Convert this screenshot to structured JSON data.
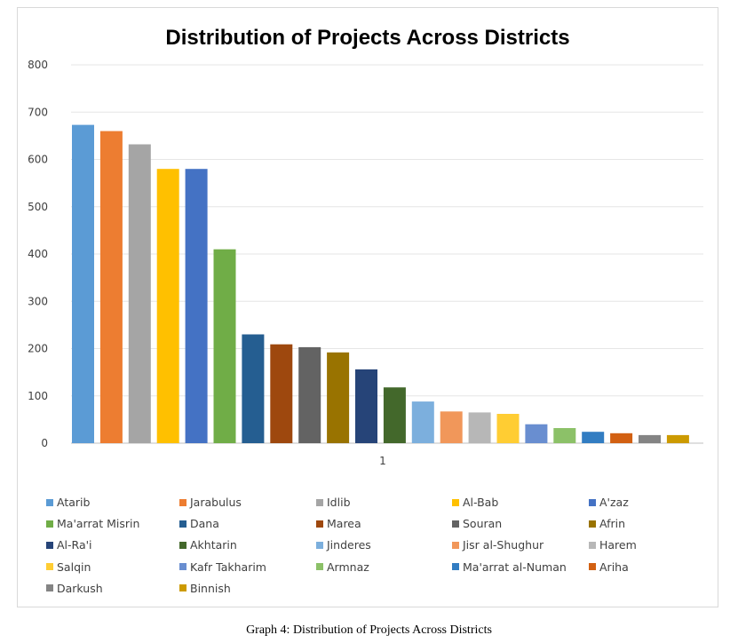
{
  "chart_data": {
    "type": "bar",
    "title": "Distribution of Projects Across Districts",
    "categories": [
      "1"
    ],
    "ylim": [
      0,
      800
    ],
    "yticks": [
      0,
      100,
      200,
      300,
      400,
      500,
      600,
      700,
      800
    ],
    "grid": true,
    "legend_position": "bottom",
    "series": [
      {
        "name": "Atarib",
        "value": 673,
        "color": "#5b9bd5"
      },
      {
        "name": "Jarabulus",
        "value": 660,
        "color": "#ed7d31"
      },
      {
        "name": "Idlib",
        "value": 632,
        "color": "#a5a5a5"
      },
      {
        "name": "Al-Bab",
        "value": 580,
        "color": "#ffc000"
      },
      {
        "name": "A'zaz",
        "value": 580,
        "color": "#4472c4"
      },
      {
        "name": "Ma'arrat Misrin",
        "value": 410,
        "color": "#70ad47"
      },
      {
        "name": "Dana",
        "value": 230,
        "color": "#255e91"
      },
      {
        "name": "Marea",
        "value": 209,
        "color": "#9e480e"
      },
      {
        "name": "Souran",
        "value": 203,
        "color": "#636363"
      },
      {
        "name": "Afrin",
        "value": 192,
        "color": "#997300"
      },
      {
        "name": "Al-Ra'i",
        "value": 156,
        "color": "#264478"
      },
      {
        "name": "Akhtarin",
        "value": 118,
        "color": "#43682b"
      },
      {
        "name": "Jinderes",
        "value": 88,
        "color": "#7cafdd"
      },
      {
        "name": "Jisr al-Shughur",
        "value": 67,
        "color": "#f1975a"
      },
      {
        "name": "Harem",
        "value": 65,
        "color": "#b7b7b7"
      },
      {
        "name": "Salqin",
        "value": 62,
        "color": "#ffcd33"
      },
      {
        "name": "Kafr Takharim",
        "value": 40,
        "color": "#698ed0"
      },
      {
        "name": "Armnaz",
        "value": 32,
        "color": "#8cc168"
      },
      {
        "name": "Ma'arrat al-Numan",
        "value": 24,
        "color": "#327dc2"
      },
      {
        "name": "Ariha",
        "value": 21,
        "color": "#d26012"
      },
      {
        "name": "Darkush",
        "value": 17,
        "color": "#848484"
      },
      {
        "name": "Binnish",
        "value": 17,
        "color": "#cc9a00"
      }
    ]
  },
  "caption": "Graph 4: Distribution of Projects Across Districts"
}
